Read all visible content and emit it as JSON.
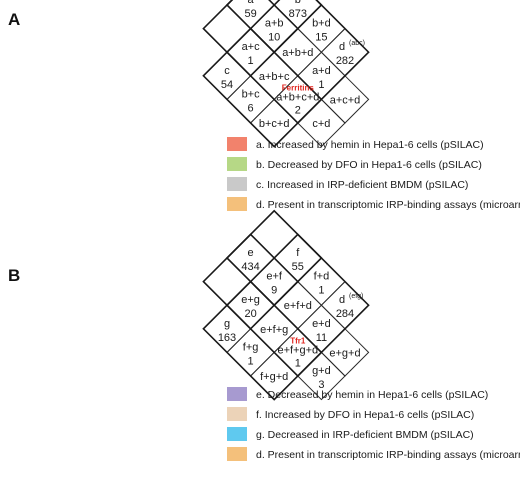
{
  "panels": [
    {
      "letter": "A",
      "sets": [
        {
          "key": "a",
          "color": "#f2826c",
          "legend": "a.  Increased by hemin in Hepa1-6 cells (pSILAC)"
        },
        {
          "key": "b",
          "color": "#b6d886",
          "legend": "b.  Decreased by DFO in Hepa1-6 cells (pSILAC)"
        },
        {
          "key": "c",
          "color": "#c9c9c9",
          "legend": "c.  Increased in IRP-deficient BMDM (pSILAC)"
        },
        {
          "key": "d",
          "color": "#f4c07b",
          "legend": "d.  Present in transcriptomic IRP-binding assays (microarrays)"
        }
      ],
      "regions": [
        {
          "id": "a",
          "label": "a",
          "count": "59",
          "color": "#f2826c"
        },
        {
          "id": "b",
          "label": "b",
          "count": "873",
          "color": "#b6d886"
        },
        {
          "id": "ac",
          "label": "a+c",
          "count": "1",
          "color": "#c99c8c"
        },
        {
          "id": "ab",
          "label": "a+b",
          "count": "10",
          "color": "#c3b45c"
        },
        {
          "id": "bd",
          "label": "b+d",
          "count": "15",
          "color": "#cdc67c"
        },
        {
          "id": "c",
          "label": "c",
          "count": "54",
          "color": "#c9c9c9"
        },
        {
          "id": "abc",
          "label": "a+b+c",
          "count": "",
          "color": "#b8aa7e"
        },
        {
          "id": "abd",
          "label": "a+b+d",
          "count": "",
          "color": "#e1a040"
        },
        {
          "id": "d",
          "label": "d",
          "count": "282",
          "sup": "(abc)",
          "color": "#f4c07b"
        },
        {
          "id": "bc",
          "label": "b+c",
          "count": "6",
          "color": "#a8bd92"
        },
        {
          "id": "abcd",
          "label": "a+b+c+d",
          "count": "2",
          "highlight": "Ferritins",
          "color": "#c7a060"
        },
        {
          "id": "ad",
          "label": "a+d",
          "count": "1",
          "color": "#f08a4a"
        },
        {
          "id": "bcd",
          "label": "b+c+d",
          "count": "",
          "color": "#d2b06e"
        },
        {
          "id": "acd",
          "label": "a+c+d",
          "count": "",
          "color": "#e8aa6c"
        },
        {
          "id": "cd",
          "label": "c+d",
          "count": "",
          "color": "#e8c296"
        }
      ]
    },
    {
      "letter": "B",
      "sets": [
        {
          "key": "e",
          "color": "#a79ad0",
          "legend": "e.  Decreased by hemin in Hepa1-6 cells (pSILAC)"
        },
        {
          "key": "f",
          "color": "#ecd3b8",
          "legend": "f.  Increased by DFO in Hepa1-6 cells (pSILAC)"
        },
        {
          "key": "g",
          "color": "#5fc9ef",
          "legend": "g.  Decreased in IRP-deficient BMDM (pSILAC)"
        },
        {
          "key": "d",
          "color": "#f4c07b",
          "legend": "d.  Present in transcriptomic IRP-binding assays (microarrays)"
        }
      ],
      "regions": [
        {
          "id": "e",
          "label": "e",
          "count": "434",
          "color": "#a79ad0"
        },
        {
          "id": "f",
          "label": "f",
          "count": "55",
          "color": "#ecd3b8"
        },
        {
          "id": "eg",
          "label": "e+g",
          "count": "20",
          "color": "#3f9ad0"
        },
        {
          "id": "ef",
          "label": "e+f",
          "count": "9",
          "color": "#c6a4ae"
        },
        {
          "id": "fd",
          "label": "f+d",
          "count": "1",
          "color": "#f0bc80"
        },
        {
          "id": "g",
          "label": "g",
          "count": "163",
          "color": "#5fc9ef"
        },
        {
          "id": "efg",
          "label": "e+f+g",
          "count": "",
          "color": "#7ea2b6"
        },
        {
          "id": "efd",
          "label": "e+f+d",
          "count": "",
          "color": "#e89a60"
        },
        {
          "id": "d",
          "label": "d",
          "count": "284",
          "sup": "(efg)",
          "color": "#f4c07b"
        },
        {
          "id": "fg",
          "label": "f+g",
          "count": "1",
          "color": "#6fb0b8"
        },
        {
          "id": "efgd",
          "label": "e+f+g+d",
          "count": "1",
          "highlight": "Tfr1",
          "color": "#b09a82"
        },
        {
          "id": "ed",
          "label": "e+d",
          "count": "11",
          "color": "#e2945e"
        },
        {
          "id": "fgd",
          "label": "f+g+d",
          "count": "",
          "color": "#c2b08a"
        },
        {
          "id": "egd",
          "label": "e+g+d",
          "count": "",
          "color": "#c8a47c"
        },
        {
          "id": "gd",
          "label": "g+d",
          "count": "3",
          "color": "#bfb88c"
        }
      ]
    }
  ]
}
